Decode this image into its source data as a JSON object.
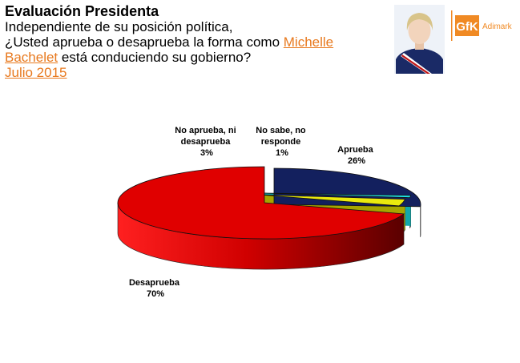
{
  "header": {
    "title": "Evaluación Presidenta",
    "line1": "Independiente de su posición política,",
    "line2_pre": "¿Usted aprueba o desaprueba la forma como ",
    "line2_link": "Michelle",
    "line3_link": "Bachelet",
    "line3_post": " está conduciendo su gobierno?",
    "date": "Julio 2015"
  },
  "logo": {
    "mark": "GfK",
    "name": "Adimark",
    "brand_color": "#f08a24"
  },
  "chart_data": {
    "type": "pie",
    "style": "3d-exploded",
    "slices": [
      {
        "label_lines": [
          "Aprueba"
        ],
        "pct_text": "26%",
        "value": 26,
        "color": "#13205e"
      },
      {
        "label_lines": [
          "No sabe, no",
          "responde"
        ],
        "pct_text": "1%",
        "value": 1,
        "color": "#1fe3e6"
      },
      {
        "label_lines": [
          "No aprueba, ni",
          "desaprueba"
        ],
        "pct_text": "3%",
        "value": 3,
        "color": "#eaea0e"
      },
      {
        "label_lines": [
          "Desaprueba"
        ],
        "pct_text": "70%",
        "value": 70,
        "color": "#e00000"
      }
    ]
  }
}
